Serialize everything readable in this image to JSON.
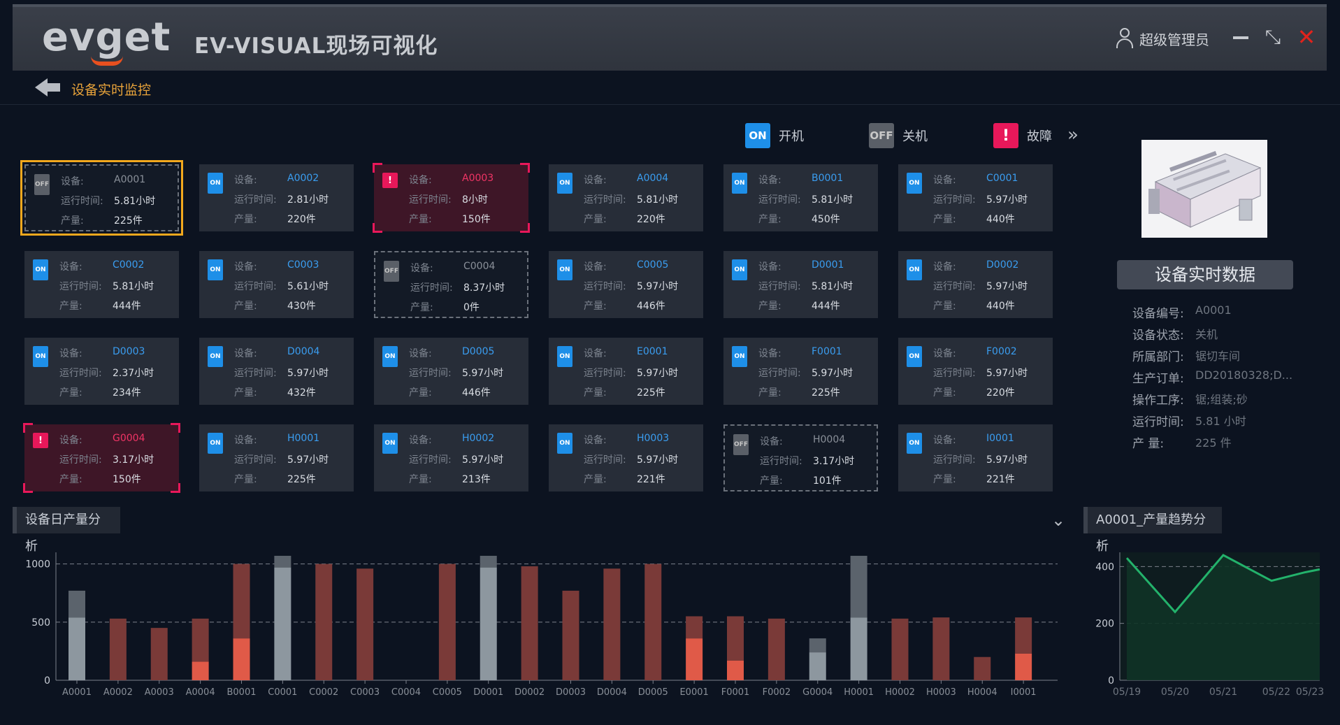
{
  "header": {
    "logo": "evget",
    "title": "EV-VISUAL现场可视化",
    "user": "超级管理员"
  },
  "window": {
    "minimize": "—",
    "restore": "⤡",
    "close": "✕"
  },
  "subheader": {
    "title": "设备实时监控"
  },
  "legend": {
    "on": {
      "chip": "ON",
      "label": "开机"
    },
    "off": {
      "chip": "OFF",
      "label": "关机"
    },
    "fault": {
      "chip": "!",
      "label": "故障"
    },
    "more": "»"
  },
  "labels": {
    "device": "设备:",
    "runtime": "运行时间:",
    "output": "产量:"
  },
  "devices": [
    {
      "id": "A0001",
      "status": "off",
      "selected": true,
      "runtime": "5.81小时",
      "output": "225件"
    },
    {
      "id": "A0002",
      "status": "on",
      "runtime": "2.81小时",
      "output": "220件"
    },
    {
      "id": "A0003",
      "status": "fault",
      "runtime": "8小时",
      "output": "150件"
    },
    {
      "id": "A0004",
      "status": "on",
      "runtime": "5.81小时",
      "output": "220件"
    },
    {
      "id": "B0001",
      "status": "on",
      "runtime": "5.81小时",
      "output": "450件"
    },
    {
      "id": "C0001",
      "status": "on",
      "runtime": "5.97小时",
      "output": "440件"
    },
    {
      "id": "C0002",
      "status": "on",
      "runtime": "5.81小时",
      "output": "444件"
    },
    {
      "id": "C0003",
      "status": "on",
      "runtime": "5.61小时",
      "output": "430件"
    },
    {
      "id": "C0004",
      "status": "off",
      "runtime": "8.37小时",
      "output": "0件"
    },
    {
      "id": "C0005",
      "status": "on",
      "runtime": "5.97小时",
      "output": "446件"
    },
    {
      "id": "D0001",
      "status": "on",
      "runtime": "5.81小时",
      "output": "444件"
    },
    {
      "id": "D0002",
      "status": "on",
      "runtime": "5.97小时",
      "output": "440件"
    },
    {
      "id": "D0003",
      "status": "on",
      "runtime": "2.37小时",
      "output": "234件"
    },
    {
      "id": "D0004",
      "status": "on",
      "runtime": "5.97小时",
      "output": "432件"
    },
    {
      "id": "D0005",
      "status": "on",
      "runtime": "5.97小时",
      "output": "446件"
    },
    {
      "id": "E0001",
      "status": "on",
      "runtime": "5.97小时",
      "output": "225件"
    },
    {
      "id": "F0001",
      "status": "on",
      "runtime": "5.97小时",
      "output": "225件"
    },
    {
      "id": "F0002",
      "status": "on",
      "runtime": "5.97小时",
      "output": "220件"
    },
    {
      "id": "G0004",
      "status": "fault",
      "runtime": "3.17小时",
      "output": "150件"
    },
    {
      "id": "H0001",
      "status": "on",
      "runtime": "5.97小时",
      "output": "225件"
    },
    {
      "id": "H0002",
      "status": "on",
      "runtime": "5.97小时",
      "output": "213件"
    },
    {
      "id": "H0003",
      "status": "on",
      "runtime": "5.97小时",
      "output": "221件"
    },
    {
      "id": "H0004",
      "status": "off",
      "runtime": "3.17小时",
      "output": "101件"
    },
    {
      "id": "I0001",
      "status": "on",
      "runtime": "5.97小时",
      "output": "221件"
    }
  ],
  "realtime": {
    "button": "设备实时数据",
    "fields": [
      {
        "label": "设备编号:",
        "value": "A0001"
      },
      {
        "label": "设备状态:",
        "value": "关机"
      },
      {
        "label": "所属部门:",
        "value": "锯切车间"
      },
      {
        "label": "生产订单:",
        "value": "DD20180328;D..."
      },
      {
        "label": "操作工序:",
        "value": "锯;组装;砂"
      },
      {
        "label": "运行时间:",
        "value": "5.81  小时"
      },
      {
        "label": "产      量:",
        "value": "225  件"
      }
    ]
  },
  "colors": {
    "on": "#1e8fe8",
    "off": "#5a5f67",
    "fault": "#e8185a",
    "selected": "#f2a81d",
    "bar_base_red": "#e05a48",
    "bar_top_red": "#7a3a38",
    "bar_base_gray": "#8d979f",
    "bar_top_gray": "#5b636c",
    "line": "#23b26b"
  },
  "daily_section": {
    "title": "设备日产量分析",
    "expand": "⌄"
  },
  "trend_section": {
    "title": "A0001_产量趋势分析"
  },
  "chart_data": [
    {
      "type": "bar",
      "stacked": true,
      "categories": [
        "A0001",
        "A0002",
        "A0003",
        "A0004",
        "B0001",
        "C0001",
        "C0002",
        "C0003",
        "C0004",
        "C0005",
        "D0001",
        "D0002",
        "D0003",
        "D0004",
        "D0005",
        "E0001",
        "F0001",
        "F0002",
        "G0004",
        "H0001",
        "H0002",
        "H0003",
        "H0004",
        "I0001"
      ],
      "series": [
        {
          "style": "base",
          "values": [
            540,
            0,
            0,
            160,
            360,
            970,
            0,
            0,
            0,
            0,
            970,
            0,
            0,
            0,
            0,
            360,
            170,
            0,
            240,
            540,
            0,
            0,
            0,
            230
          ]
        },
        {
          "style": "top",
          "values": [
            230,
            530,
            450,
            370,
            640,
            100,
            1000,
            960,
            0,
            1000,
            100,
            980,
            770,
            960,
            1000,
            190,
            380,
            530,
            120,
            530,
            530,
            540,
            200,
            310
          ]
        }
      ],
      "base_color": [
        "gray",
        "red",
        "red",
        "red",
        "red",
        "gray",
        "red",
        "red",
        "red",
        "red",
        "gray",
        "red",
        "red",
        "red",
        "red",
        "red",
        "red",
        "red",
        "gray",
        "gray",
        "red",
        "red",
        "red",
        "red"
      ],
      "ylim": [
        0,
        1100
      ],
      "yticks": [
        0,
        500,
        1000
      ],
      "grid": true
    },
    {
      "type": "area",
      "categories": [
        "05/19",
        "05/20",
        "05/21",
        "05/22",
        "05/23"
      ],
      "x": [
        0,
        1,
        2,
        3,
        3.7,
        4
      ],
      "values": [
        430,
        240,
        440,
        350,
        380,
        390
      ],
      "ylim": [
        0,
        450
      ],
      "yticks": [
        0,
        200,
        400
      ],
      "grid": true
    }
  ]
}
